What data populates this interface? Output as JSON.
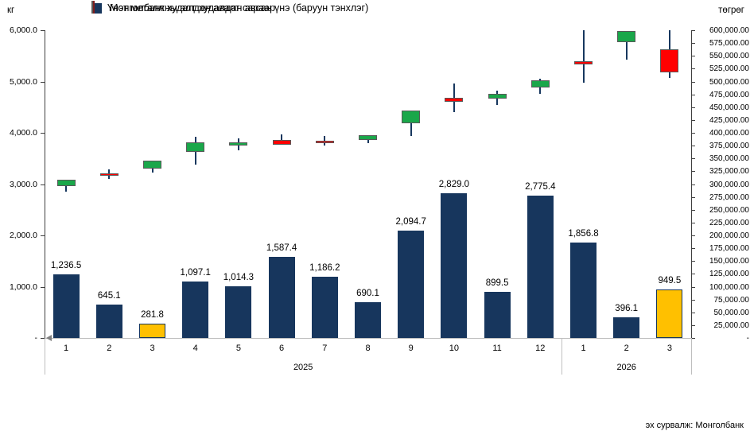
{
  "chart": {
    "left_axis_title": "кг",
    "right_axis_title": "төгрөг",
    "source_note": "эх сурвалж: Монголбанк",
    "legend": [
      {
        "label": "Үнэт металл худалдан авалт сараар"
      },
      {
        "label": "Монголбанкны алт худалдан авсан үнэ (баруун тэнхлэг)"
      }
    ]
  },
  "colors": {
    "bar_navy": "#17365D",
    "bar_highlight": "#FFC000",
    "candle_up": "#1AA74A",
    "candle_down": "#FF0000",
    "candle_border": "#595959",
    "wick": "#17375E",
    "axis_line": "#404040",
    "baseline": "#BFBFBF",
    "arrow": "#808080",
    "text": "#000000"
  },
  "chart_data": {
    "type": [
      "bar",
      "candlestick"
    ],
    "title": "",
    "categories": [
      "1",
      "2",
      "3",
      "4",
      "5",
      "6",
      "7",
      "8",
      "9",
      "10",
      "11",
      "12",
      "1",
      "2",
      "3"
    ],
    "year_groups": [
      {
        "label": "2025",
        "from": 1,
        "to": 12
      },
      {
        "label": "2026",
        "from": 13,
        "to": 15
      }
    ],
    "left_axis": {
      "title": "кг",
      "min": 0,
      "max": 6000,
      "tick_step": 1000,
      "tick_labels": [
        "6,000.0",
        "5,000.0",
        "4,000.0",
        "3,000.0",
        "2,000.0",
        "1,000.0",
        "-"
      ]
    },
    "right_axis": {
      "title": "төгрөг",
      "min": 0,
      "max": 600000,
      "tick_step": 25000,
      "tick_labels": [
        "600,000.00",
        "575,000.00",
        "550,000.00",
        "525,000.00",
        "500,000.00",
        "475,000.00",
        "450,000.00",
        "425,000.00",
        "400,000.00",
        "375,000.00",
        "350,000.00",
        "325,000.00",
        "300,000.00",
        "275,000.00",
        "250,000.00",
        "225,000.00",
        "200,000.00",
        "175,000.00",
        "150,000.00",
        "125,000.00",
        "100,000.00",
        "75,000.00",
        "50,000.00",
        "25,000.00",
        "-"
      ]
    },
    "series": [
      {
        "name": "Үнэт металл худалдан авалт сараар",
        "type": "bar",
        "axis": "left",
        "values": [
          1236.5,
          645.1,
          281.8,
          1097.1,
          1014.3,
          1587.4,
          1186.2,
          690.1,
          2094.7,
          2829.0,
          899.5,
          2775.4,
          1856.8,
          396.1,
          949.5
        ],
        "labels": [
          "1,236.5",
          "645.1",
          "281.8",
          "1,097.1",
          "1,014.3",
          "1,587.4",
          "1,186.2",
          "690.1",
          "2,094.7",
          "2,829.0",
          "899.5",
          "2,775.4",
          "1,856.8",
          "396.1",
          "949.5"
        ],
        "highlight_indexes": [
          2,
          14
        ]
      },
      {
        "name": "Монголбанкны алт худалдан авсан үнэ (баруун тэнхлэг)",
        "type": "candlestick",
        "axis": "right",
        "ohlc": [
          {
            "open": 296000,
            "high": 309000,
            "low": 285500,
            "close": 309000
          },
          {
            "open": 321500,
            "high": 329000,
            "low": 310000,
            "close": 317000
          },
          {
            "open": 330000,
            "high": 345500,
            "low": 323000,
            "close": 345500
          },
          {
            "open": 363000,
            "high": 393000,
            "low": 338500,
            "close": 381000
          },
          {
            "open": 375000,
            "high": 389000,
            "low": 366000,
            "close": 381000
          },
          {
            "open": 386000,
            "high": 396500,
            "low": 377000,
            "close": 377000
          },
          {
            "open": 385000,
            "high": 394000,
            "low": 375000,
            "close": 381000
          },
          {
            "open": 386000,
            "high": 395500,
            "low": 380000,
            "close": 395500
          },
          {
            "open": 418500,
            "high": 443000,
            "low": 394000,
            "close": 443000
          },
          {
            "open": 468000,
            "high": 496500,
            "low": 440500,
            "close": 460500
          },
          {
            "open": 466000,
            "high": 482000,
            "low": 455000,
            "close": 475500
          },
          {
            "open": 488500,
            "high": 505000,
            "low": 475500,
            "close": 502500
          },
          {
            "open": 540000,
            "high": 600000,
            "low": 498000,
            "close": 534000
          },
          {
            "open": 576500,
            "high": 598500,
            "low": 542500,
            "close": 598500
          },
          {
            "open": 562500,
            "high": 600000,
            "low": 506500,
            "close": 518500
          }
        ]
      }
    ]
  }
}
